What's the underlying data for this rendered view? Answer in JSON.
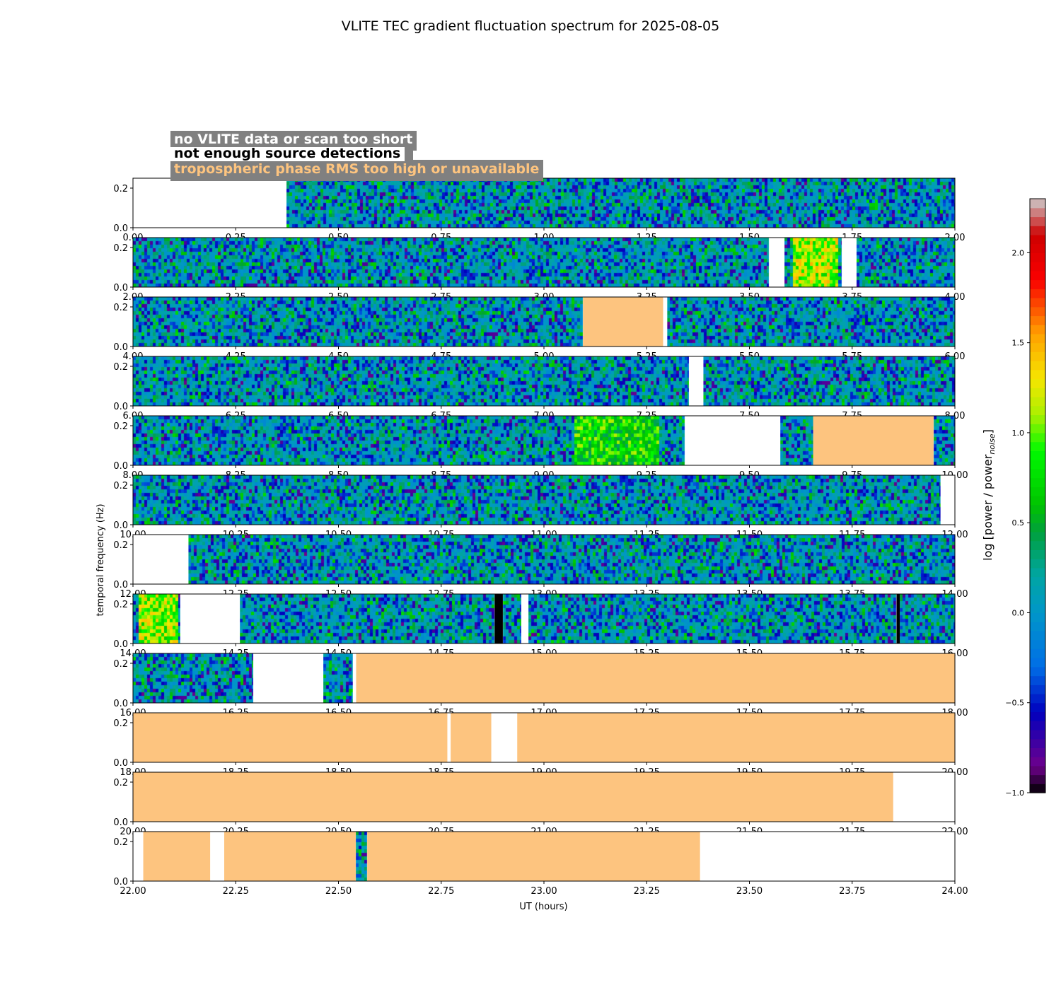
{
  "chart_data": {
    "type": "heatmap",
    "title": "VLITE TEC gradient fluctuation spectrum for 2025-08-05",
    "xlabel": "UT (hours)",
    "ylabel": "temporal frequency (Hz)",
    "ylim": [
      0,
      0.25
    ],
    "y_ticks": [
      "0.0",
      "0.2"
    ],
    "y_tick_values": [
      0.0,
      0.2
    ],
    "colorbar": {
      "label": "log [power / power",
      "label_sub": "noise",
      "label_end": "]",
      "range": [
        -1.0,
        2.3
      ],
      "ticks": [
        -1.0,
        -0.5,
        0.0,
        0.5,
        1.0,
        1.5,
        2.0
      ],
      "tick_labels": [
        "−1.0",
        "−0.5",
        "0.0",
        "0.5",
        "1.0",
        "1.5",
        "2.0"
      ]
    },
    "legend": [
      {
        "label": "no VLITE data or scan too short",
        "color": "#ffffff"
      },
      {
        "label": "not enough source detections",
        "color": "#000000"
      },
      {
        "label": "tropospheric phase RMS too high or unavailable",
        "color": "#fdc47f"
      }
    ],
    "panels": [
      {
        "start": 0,
        "tick_labels": [
          "0.00",
          "0.25",
          "0.50",
          "0.75",
          "1.00",
          "1.25",
          "1.50",
          "1.75",
          "2.00"
        ],
        "segments": [
          {
            "from": 0,
            "to": 0.373,
            "kind": "nodata"
          },
          {
            "from": 0.373,
            "to": 2.0,
            "kind": "data"
          }
        ],
        "hotspots": []
      },
      {
        "start": 2,
        "tick_labels": [
          "2.00",
          "2.25",
          "2.50",
          "2.75",
          "3.00",
          "3.25",
          "3.50",
          "3.75",
          "4.00"
        ],
        "segments": [
          {
            "from": 2,
            "to": 3.548,
            "kind": "data"
          },
          {
            "from": 3.548,
            "to": 3.585,
            "kind": "nodata"
          },
          {
            "from": 3.585,
            "to": 3.725,
            "kind": "data"
          },
          {
            "from": 3.725,
            "to": 3.76,
            "kind": "nodata"
          },
          {
            "from": 3.76,
            "to": 4.0,
            "kind": "data"
          }
        ],
        "hotspots": [
          {
            "from": 3.6,
            "to": 3.71,
            "level": 1.0
          }
        ]
      },
      {
        "start": 4,
        "tick_labels": [
          "4.00",
          "4.25",
          "4.50",
          "4.75",
          "5.00",
          "5.25",
          "5.50",
          "5.75",
          "6.00"
        ],
        "segments": [
          {
            "from": 4,
            "to": 5.095,
            "kind": "data"
          },
          {
            "from": 5.095,
            "to": 5.29,
            "kind": "tropo"
          },
          {
            "from": 5.29,
            "to": 5.3,
            "kind": "nodata"
          },
          {
            "from": 5.3,
            "to": 6.0,
            "kind": "data"
          }
        ],
        "hotspots": []
      },
      {
        "start": 6,
        "tick_labels": [
          "6.00",
          "6.25",
          "6.50",
          "6.75",
          "7.00",
          "7.25",
          "7.50",
          "7.75",
          "8.00"
        ],
        "segments": [
          {
            "from": 6,
            "to": 7.353,
            "kind": "data"
          },
          {
            "from": 7.353,
            "to": 7.388,
            "kind": "nodata"
          },
          {
            "from": 7.388,
            "to": 8.0,
            "kind": "data"
          }
        ],
        "hotspots": []
      },
      {
        "start": 8,
        "tick_labels": [
          "8.00",
          "8.25",
          "8.50",
          "8.75",
          "9.00",
          "9.25",
          "9.50",
          "9.75",
          "10.00"
        ],
        "segments": [
          {
            "from": 8,
            "to": 9.343,
            "kind": "data"
          },
          {
            "from": 9.343,
            "to": 9.575,
            "kind": "nodata"
          },
          {
            "from": 9.575,
            "to": 9.655,
            "kind": "data"
          },
          {
            "from": 9.655,
            "to": 9.948,
            "kind": "tropo"
          },
          {
            "from": 9.948,
            "to": 10.0,
            "kind": "data"
          }
        ],
        "hotspots": [
          {
            "from": 9.07,
            "to": 9.28,
            "level": 0.65
          }
        ]
      },
      {
        "start": 10,
        "tick_labels": [
          "10.00",
          "10.25",
          "10.50",
          "10.75",
          "11.00",
          "11.25",
          "11.50",
          "11.75",
          "12.00"
        ],
        "segments": [
          {
            "from": 10,
            "to": 11.965,
            "kind": "data"
          },
          {
            "from": 11.965,
            "to": 12.0,
            "kind": "nodata"
          }
        ],
        "hotspots": []
      },
      {
        "start": 12,
        "tick_labels": [
          "12.00",
          "12.25",
          "12.50",
          "12.75",
          "13.00",
          "13.25",
          "13.50",
          "13.75",
          "14.00"
        ],
        "segments": [
          {
            "from": 12,
            "to": 12.135,
            "kind": "nodata"
          },
          {
            "from": 12.135,
            "to": 14.0,
            "kind": "data"
          }
        ],
        "hotspots": []
      },
      {
        "start": 14,
        "tick_labels": [
          "14.00",
          "14.25",
          "14.50",
          "14.75",
          "15.00",
          "15.25",
          "15.50",
          "15.75",
          "16.00"
        ],
        "segments": [
          {
            "from": 14,
            "to": 14.115,
            "kind": "data"
          },
          {
            "from": 14.115,
            "to": 14.26,
            "kind": "nodata"
          },
          {
            "from": 14.26,
            "to": 14.88,
            "kind": "data"
          },
          {
            "from": 14.88,
            "to": 14.9,
            "kind": "nodetect"
          },
          {
            "from": 14.9,
            "to": 14.945,
            "kind": "data"
          },
          {
            "from": 14.945,
            "to": 14.962,
            "kind": "nodata"
          },
          {
            "from": 14.962,
            "to": 15.858,
            "kind": "data"
          },
          {
            "from": 15.858,
            "to": 15.866,
            "kind": "nodetect"
          },
          {
            "from": 15.866,
            "to": 16.0,
            "kind": "data"
          }
        ],
        "hotspots": [
          {
            "from": 14.01,
            "to": 14.11,
            "level": 0.95
          }
        ]
      },
      {
        "start": 16,
        "tick_labels": [
          "16.00",
          "16.25",
          "16.50",
          "16.75",
          "17.00",
          "17.25",
          "17.50",
          "17.75",
          "18.00"
        ],
        "segments": [
          {
            "from": 16,
            "to": 16.293,
            "kind": "data"
          },
          {
            "from": 16.293,
            "to": 16.463,
            "kind": "nodata"
          },
          {
            "from": 16.463,
            "to": 16.535,
            "kind": "data"
          },
          {
            "from": 16.535,
            "to": 16.543,
            "kind": "nodata"
          },
          {
            "from": 16.543,
            "to": 18.0,
            "kind": "tropo"
          }
        ],
        "hotspots": []
      },
      {
        "start": 18,
        "tick_labels": [
          "18.00",
          "18.25",
          "18.50",
          "18.75",
          "19.00",
          "19.25",
          "19.50",
          "19.75",
          "20.00"
        ],
        "segments": [
          {
            "from": 18,
            "to": 18.765,
            "kind": "tropo"
          },
          {
            "from": 18.765,
            "to": 18.773,
            "kind": "nodata"
          },
          {
            "from": 18.773,
            "to": 18.872,
            "kind": "tropo"
          },
          {
            "from": 18.872,
            "to": 18.935,
            "kind": "nodata"
          },
          {
            "from": 18.935,
            "to": 20.0,
            "kind": "tropo"
          }
        ],
        "hotspots": []
      },
      {
        "start": 20,
        "tick_labels": [
          "20.00",
          "20.25",
          "20.50",
          "20.75",
          "21.00",
          "21.25",
          "21.50",
          "21.75",
          "22.00"
        ],
        "segments": [
          {
            "from": 20,
            "to": 21.85,
            "kind": "tropo"
          },
          {
            "from": 21.85,
            "to": 22.0,
            "kind": "nodata"
          }
        ],
        "hotspots": []
      },
      {
        "start": 22,
        "tick_labels": [
          "22.00",
          "22.25",
          "22.50",
          "22.75",
          "23.00",
          "23.25",
          "23.50",
          "23.75",
          "24.00"
        ],
        "segments": [
          {
            "from": 22,
            "to": 22.025,
            "kind": "nodata"
          },
          {
            "from": 22.025,
            "to": 22.188,
            "kind": "tropo"
          },
          {
            "from": 22.188,
            "to": 22.222,
            "kind": "nodata"
          },
          {
            "from": 22.222,
            "to": 22.542,
            "kind": "tropo"
          },
          {
            "from": 22.542,
            "to": 22.57,
            "kind": "data"
          },
          {
            "from": 22.57,
            "to": 23.38,
            "kind": "tropo"
          },
          {
            "from": 23.38,
            "to": 24.0,
            "kind": "nodata"
          }
        ],
        "hotspots": []
      }
    ]
  },
  "colors": {
    "tropo": "#fdc47f",
    "nodetect": "#000000",
    "nodata": "#ffffff",
    "legend_bg": "#808080"
  }
}
